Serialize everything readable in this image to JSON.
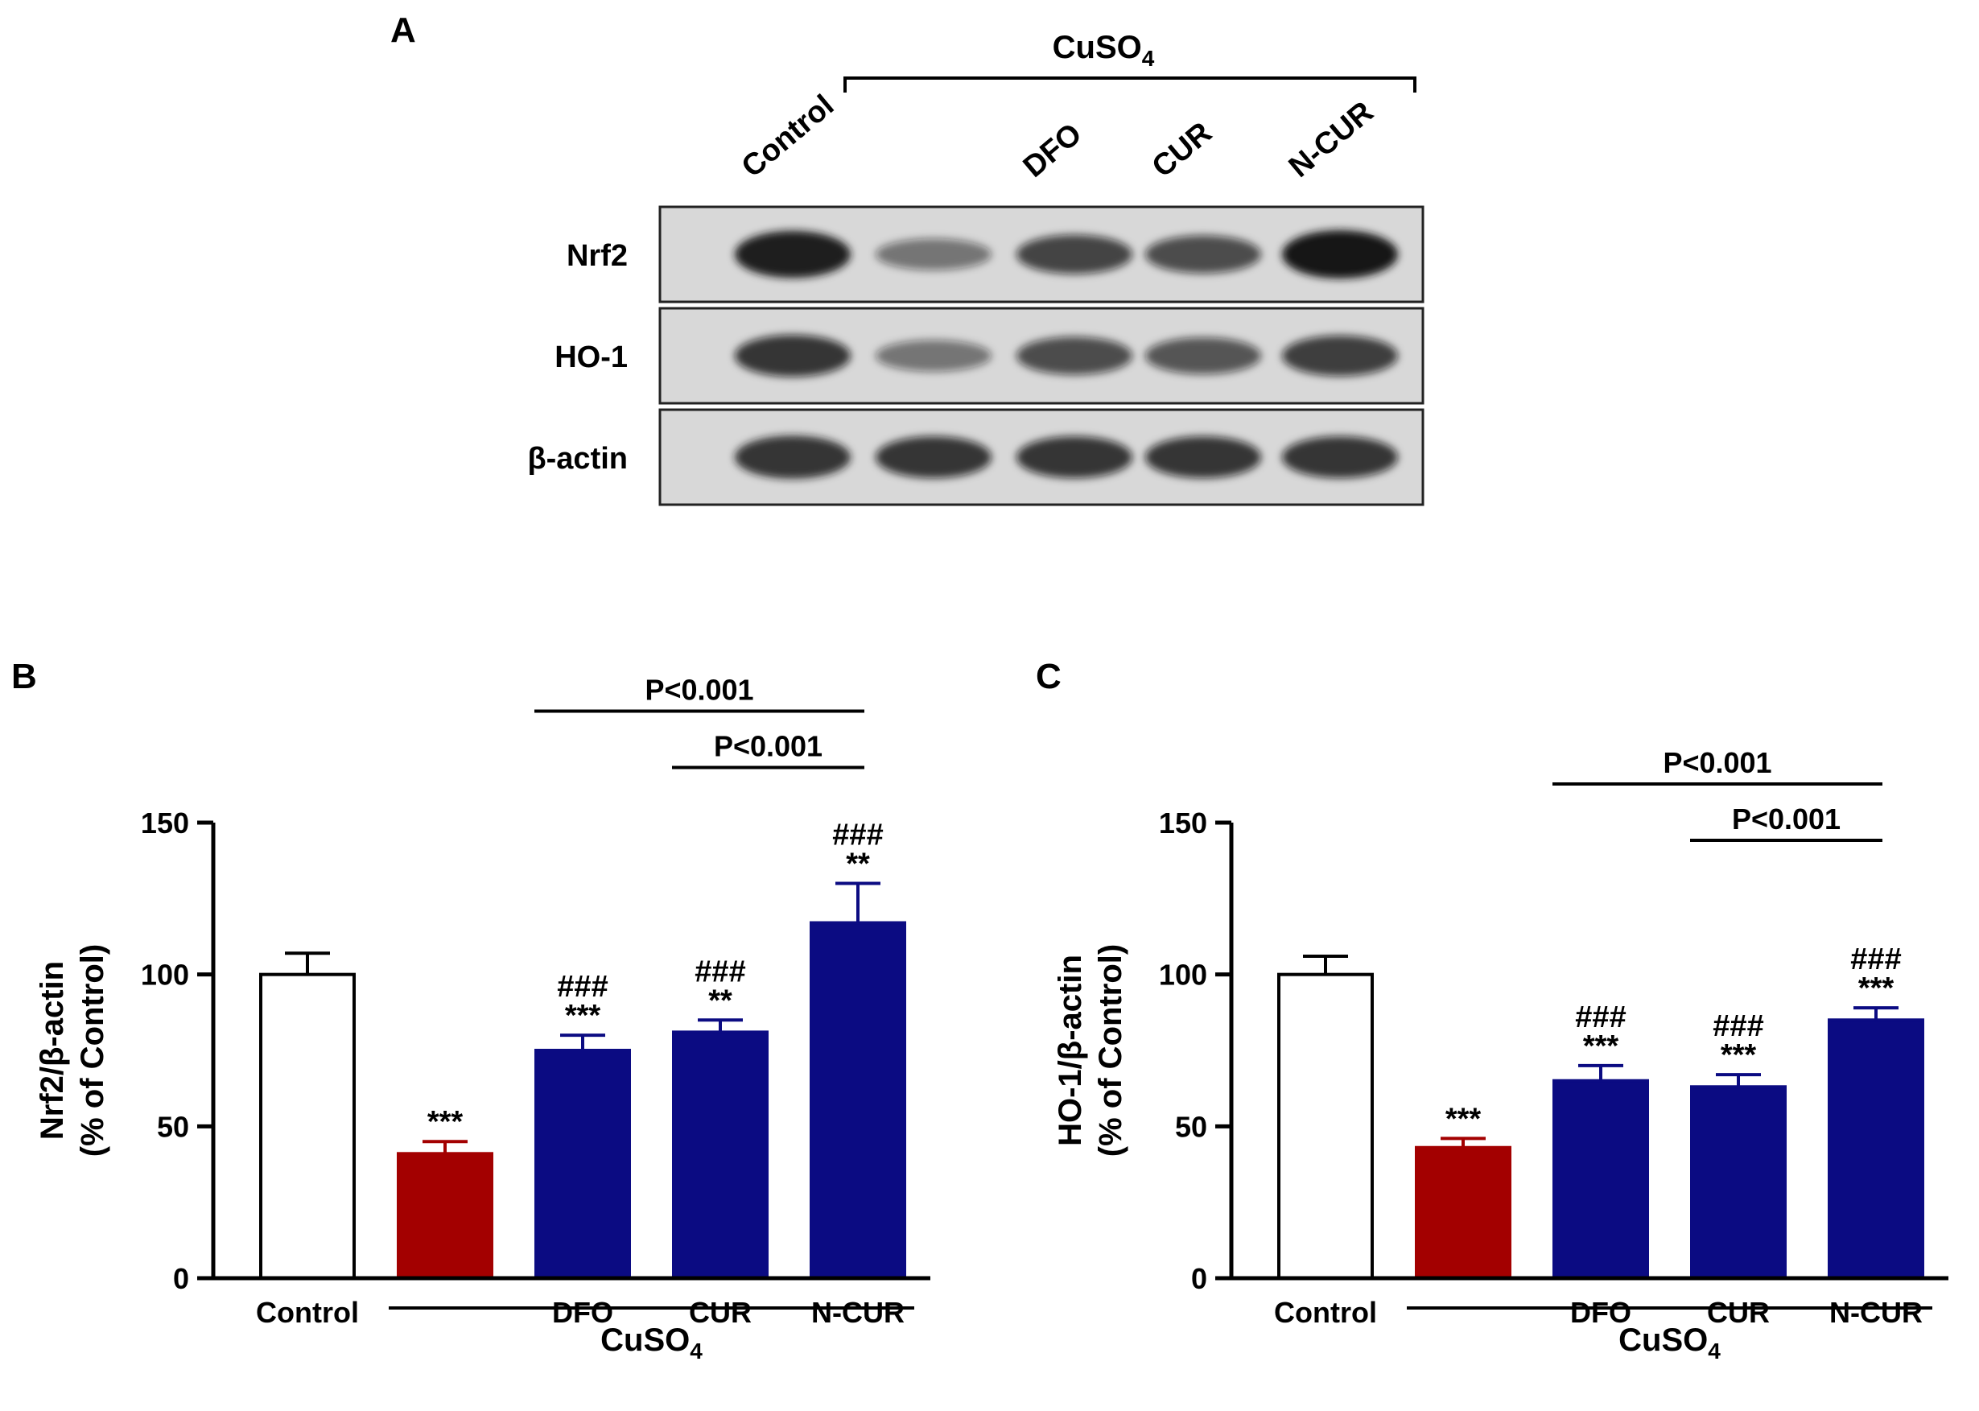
{
  "panels": {
    "a": "A",
    "b": "B",
    "c": "C"
  },
  "blot": {
    "group_label": "CuSO",
    "group_subscript": "4",
    "lanes": [
      "Control",
      "",
      "DFO",
      "CUR",
      "N-CUR"
    ],
    "rows": [
      {
        "label": "Nrf2",
        "intensity": [
          0.95,
          0.35,
          0.65,
          0.6,
          1.0
        ]
      },
      {
        "label": "HO-1",
        "intensity": [
          0.75,
          0.35,
          0.6,
          0.55,
          0.7
        ]
      },
      {
        "label": "β-actin",
        "intensity": [
          0.8,
          0.75,
          0.75,
          0.75,
          0.75
        ]
      }
    ]
  },
  "colors": {
    "control": "#ffffff",
    "cuso4": "#a30000",
    "treatment": "#0b0b82",
    "band": "#141414",
    "membrane": "#d8d8d8"
  },
  "chart_data": [
    {
      "type": "bar",
      "panel": "B",
      "categories": [
        "Control",
        "",
        "DFO",
        "CUR",
        "N-CUR"
      ],
      "group_label": "CuSO",
      "group_subscript": "4",
      "values": [
        100,
        41,
        75,
        81,
        117
      ],
      "errors": [
        7,
        4,
        5,
        4,
        13
      ],
      "bar_colors": [
        "control",
        "cuso4",
        "treatment",
        "treatment",
        "treatment"
      ],
      "annotations": [
        [],
        [
          "***"
        ],
        [
          "***",
          "###"
        ],
        [
          "**",
          "###"
        ],
        [
          "**",
          "###"
        ]
      ],
      "comparisons": [
        {
          "from": 2,
          "to": 4,
          "label": "P<0.001"
        },
        {
          "from": 3,
          "to": 4,
          "label": "P<0.001"
        }
      ],
      "ylabel": [
        "Nrf2/β-actin",
        "(% of Control)"
      ],
      "ylim": [
        0,
        150
      ],
      "yticks": [
        0,
        50,
        100,
        150
      ]
    },
    {
      "type": "bar",
      "panel": "C",
      "categories": [
        "Control",
        "",
        "DFO",
        "CUR",
        "N-CUR"
      ],
      "group_label": "CuSO",
      "group_subscript": "4",
      "values": [
        100,
        43,
        65,
        63,
        85
      ],
      "errors": [
        6,
        3,
        5,
        4,
        4
      ],
      "bar_colors": [
        "control",
        "cuso4",
        "treatment",
        "treatment",
        "treatment"
      ],
      "annotations": [
        [],
        [
          "***"
        ],
        [
          "***",
          "###"
        ],
        [
          "***",
          "###"
        ],
        [
          "***",
          "###"
        ]
      ],
      "comparisons": [
        {
          "from": 2,
          "to": 4,
          "label": "P<0.001"
        },
        {
          "from": 3,
          "to": 4,
          "label": "P<0.001"
        }
      ],
      "ylabel": [
        "HO-1/β-actin",
        "(% of Control)"
      ],
      "ylim": [
        0,
        150
      ],
      "yticks": [
        0,
        50,
        100,
        150
      ]
    }
  ]
}
